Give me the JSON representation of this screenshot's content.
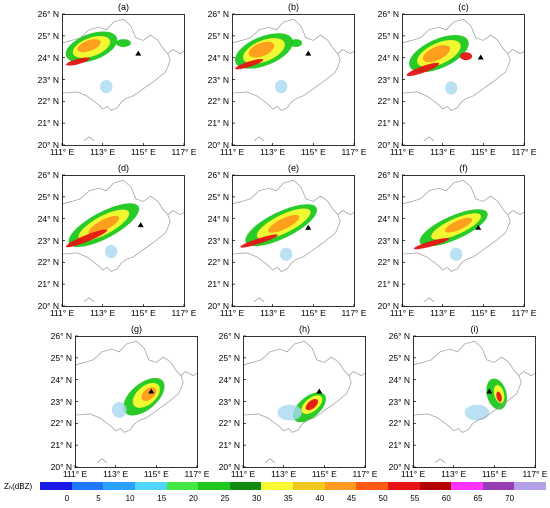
{
  "panels": [
    {
      "label": "(a)",
      "storm": "a"
    },
    {
      "label": "(b)",
      "storm": "b"
    },
    {
      "label": "(c)",
      "storm": "c"
    },
    {
      "label": "(d)",
      "storm": "d"
    },
    {
      "label": "(e)",
      "storm": "e"
    },
    {
      "label": "(f)",
      "storm": "f"
    },
    {
      "label": "(g)",
      "storm": "g"
    },
    {
      "label": "(h)",
      "storm": "h"
    },
    {
      "label": "(i)",
      "storm": "i"
    }
  ],
  "y_ticks": [
    "26° N",
    "25° N",
    "24° N",
    "23° N",
    "22° N",
    "21° N",
    "20° N"
  ],
  "x_ticks": [
    "111° E",
    "113° E",
    "115° E",
    "117° E"
  ],
  "colorbar": {
    "title": "Zₕ(dBZ)",
    "labels": [
      "0",
      "5",
      "10",
      "15",
      "20",
      "25",
      "30",
      "35",
      "40",
      "45",
      "50",
      "55",
      "60",
      "65",
      "70"
    ],
    "colors": [
      "#1a1ae6",
      "#1e78ff",
      "#2aa0ff",
      "#4ed6ff",
      "#44e844",
      "#1ec81e",
      "#0f8c0f",
      "#fafa32",
      "#f0c81e",
      "#ff9a1e",
      "#ff5a14",
      "#e61414",
      "#b40000",
      "#ff32ff",
      "#963cb4",
      "#b4a0e6"
    ]
  },
  "marker": "black triangle"
}
